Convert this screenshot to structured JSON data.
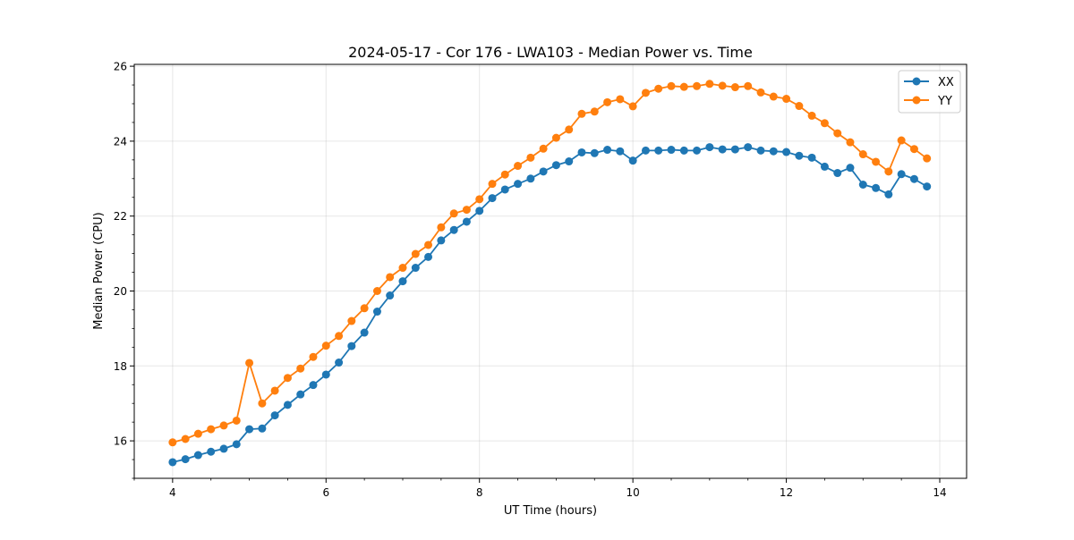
{
  "chart_data": {
    "type": "line",
    "title": "2024-05-17 - Cor 176 - LWA103 - Median Power vs. Time",
    "xlabel": "UT Time (hours)",
    "ylabel": "Median Power (CPU)",
    "xlim": [
      3.5,
      14.35
    ],
    "ylim": [
      15.0,
      26.05
    ],
    "xticks": [
      4,
      6,
      8,
      10,
      12,
      14
    ],
    "yticks": [
      16,
      18,
      20,
      22,
      24,
      26
    ],
    "grid": true,
    "legend_position": "top-right",
    "x": [
      4.0,
      4.167,
      4.333,
      4.5,
      4.667,
      4.833,
      5.0,
      5.167,
      5.333,
      5.5,
      5.667,
      5.833,
      6.0,
      6.167,
      6.333,
      6.5,
      6.667,
      6.833,
      7.0,
      7.167,
      7.333,
      7.5,
      7.667,
      7.833,
      8.0,
      8.167,
      8.333,
      8.5,
      8.667,
      8.833,
      9.0,
      9.167,
      9.333,
      9.5,
      9.667,
      9.833,
      10.0,
      10.167,
      10.333,
      10.5,
      10.667,
      10.833,
      11.0,
      11.167,
      11.333,
      11.5,
      11.667,
      11.833,
      12.0,
      12.167,
      12.333,
      12.5,
      12.667,
      12.833,
      13.0,
      13.167,
      13.333,
      13.5,
      13.667,
      13.833
    ],
    "series": [
      {
        "name": "XX",
        "color": "#1f77b4",
        "values": [
          15.43,
          15.51,
          15.62,
          15.71,
          15.79,
          15.91,
          16.31,
          16.33,
          16.68,
          16.96,
          17.24,
          17.49,
          17.77,
          18.09,
          18.53,
          18.89,
          19.45,
          19.88,
          20.26,
          20.62,
          20.91,
          21.35,
          21.63,
          21.85,
          22.14,
          22.48,
          22.71,
          22.86,
          23.0,
          23.19,
          23.36,
          23.46,
          23.7,
          23.68,
          23.77,
          23.73,
          23.48,
          23.75,
          23.75,
          23.77,
          23.75,
          23.75,
          23.84,
          23.78,
          23.78,
          23.84,
          23.75,
          23.73,
          23.71,
          23.61,
          23.56,
          23.32,
          23.15,
          23.29,
          22.84,
          22.75,
          22.58,
          23.12,
          22.99,
          22.79
        ]
      },
      {
        "name": "YY",
        "color": "#ff7f0e",
        "values": [
          15.96,
          16.05,
          16.19,
          16.31,
          16.41,
          16.54,
          18.08,
          17.0,
          17.34,
          17.68,
          17.93,
          18.24,
          18.54,
          18.8,
          19.2,
          19.54,
          20.0,
          20.37,
          20.62,
          20.99,
          21.23,
          21.7,
          22.07,
          22.17,
          22.45,
          22.86,
          23.11,
          23.34,
          23.56,
          23.8,
          24.09,
          24.31,
          24.73,
          24.79,
          25.04,
          25.12,
          24.93,
          25.29,
          25.4,
          25.47,
          25.45,
          25.47,
          25.53,
          25.48,
          25.44,
          25.47,
          25.3,
          25.19,
          25.13,
          24.94,
          24.68,
          24.48,
          24.21,
          23.97,
          23.65,
          23.45,
          23.19,
          24.02,
          23.79,
          23.54
        ]
      }
    ]
  }
}
